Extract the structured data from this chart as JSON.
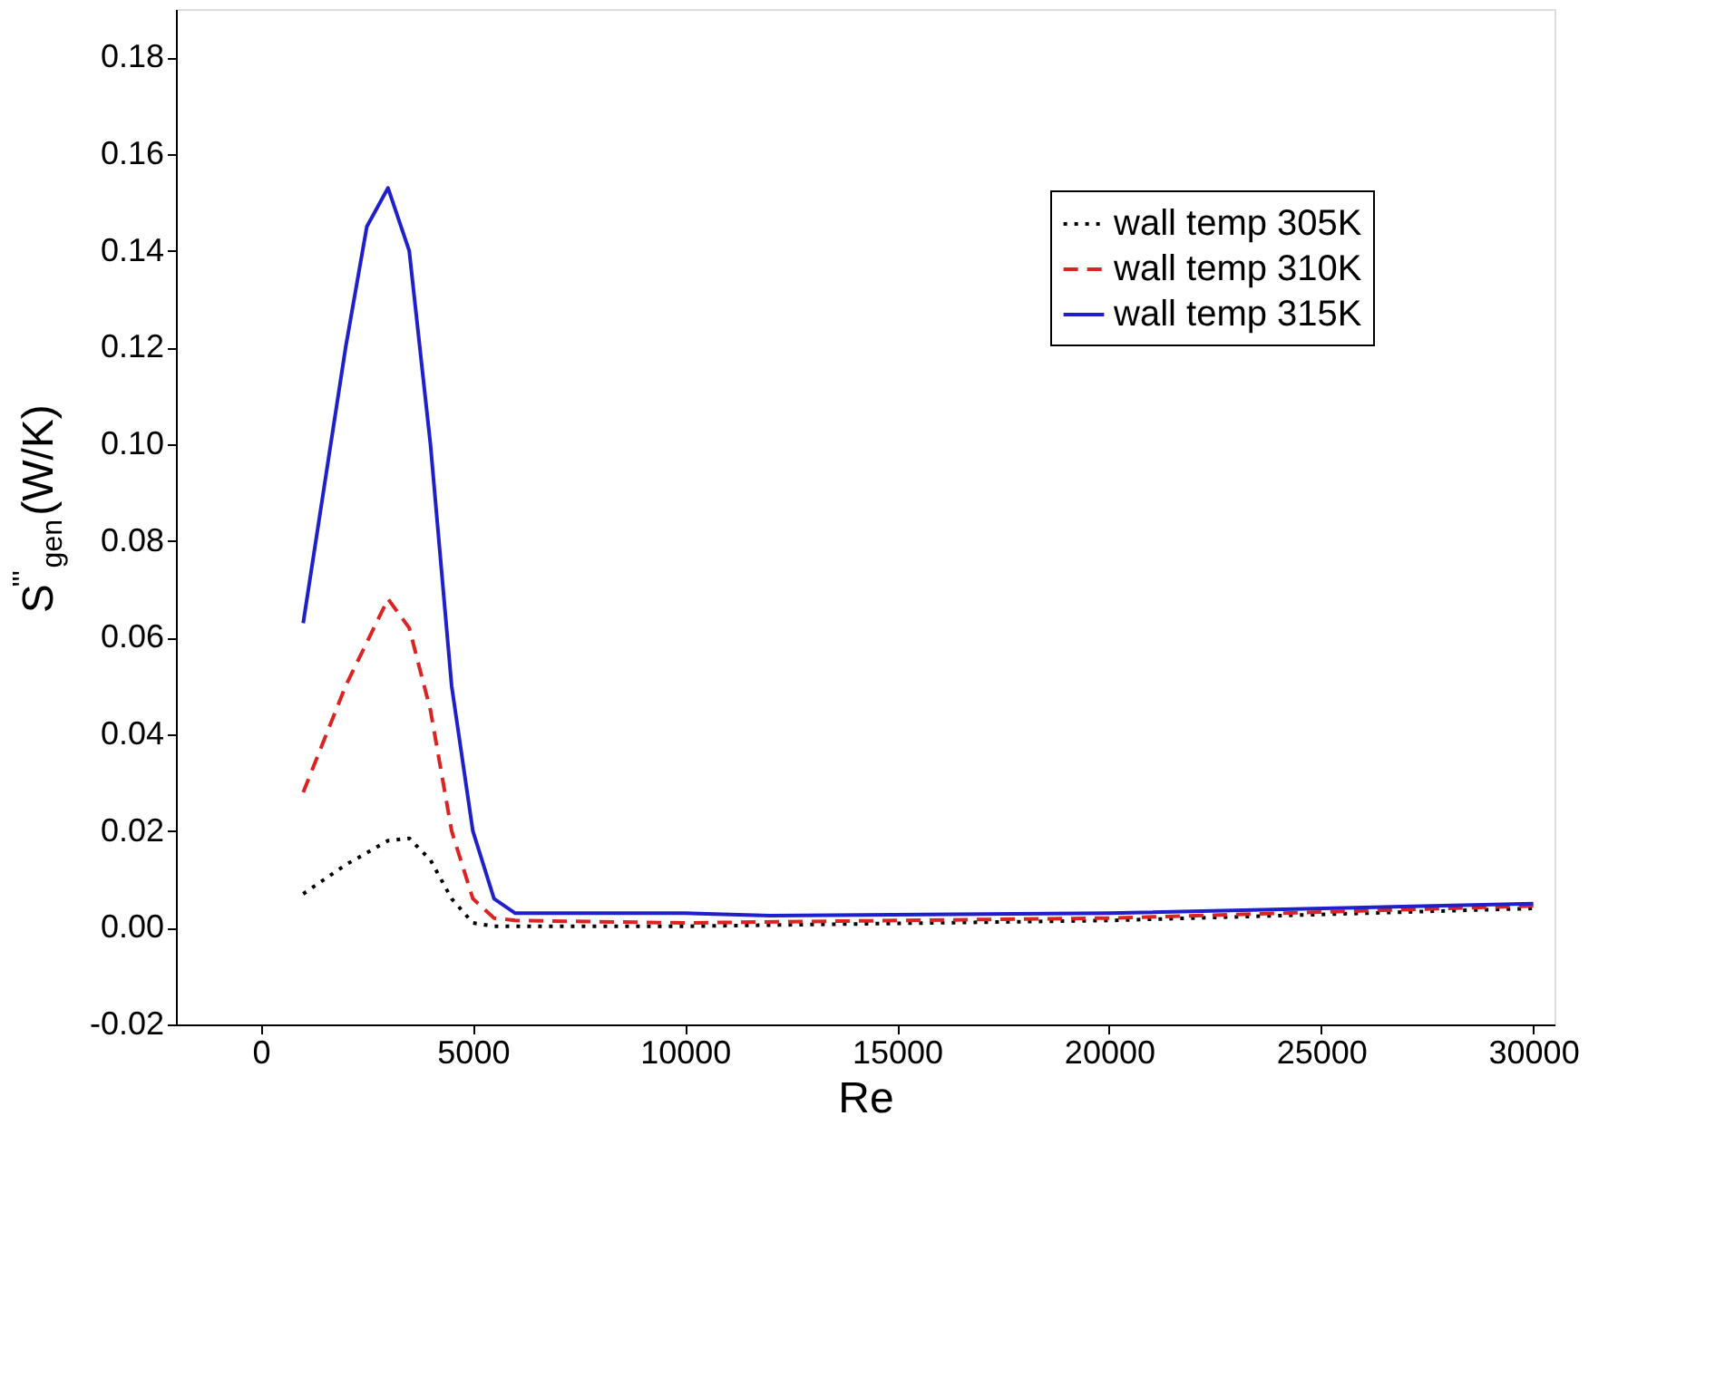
{
  "chart_data": {
    "type": "line",
    "xlabel": "Re",
    "ylabel": "S$^{'''}$$_{gen}$(W/K)",
    "xlim": [
      -2000,
      30500
    ],
    "xticks": [
      0,
      5000,
      10000,
      15000,
      20000,
      25000,
      30000
    ],
    "ylim": [
      -0.02,
      0.19
    ],
    "yticks": [
      {
        "value": -0.02,
        "label": "-0.02"
      },
      {
        "value": 0,
        "label": "0.00"
      },
      {
        "value": 0.02,
        "label": "0.02"
      },
      {
        "value": 0.04,
        "label": "0.04"
      },
      {
        "value": 0.06,
        "label": "0.06"
      },
      {
        "value": 0.08,
        "label": "0.08"
      },
      {
        "value": 0.1,
        "label": "0.10"
      },
      {
        "value": 0.12,
        "label": "0.12"
      },
      {
        "value": 0.14,
        "label": "0.14"
      },
      {
        "value": 0.16,
        "label": "0.16"
      },
      {
        "value": 0.18,
        "label": "0.18"
      }
    ],
    "grid": false,
    "legend": "top right",
    "marker": "none",
    "series": [
      {
        "name": "wall temp 305K",
        "color": "#000000",
        "line_style": "dotted",
        "x": [
          1000,
          2000,
          3000,
          3500,
          4000,
          4500,
          5000,
          5500,
          10000,
          20000,
          30000
        ],
        "values": [
          0.007,
          0.013,
          0.018,
          0.0185,
          0.014,
          0.006,
          0.001,
          0.0003,
          0.0003,
          0.0015,
          0.004
        ]
      },
      {
        "name": "wall temp 310K",
        "color": "#dd2222",
        "line_style": "dashed",
        "x": [
          1000,
          2000,
          3000,
          3500,
          4000,
          4500,
          5000,
          5500,
          6000,
          10000,
          20000,
          30000
        ],
        "values": [
          0.028,
          0.05,
          0.068,
          0.062,
          0.045,
          0.02,
          0.006,
          0.002,
          0.0015,
          0.001,
          0.002,
          0.0045
        ]
      },
      {
        "name": "wall temp 315K",
        "color": "#1f1fcc",
        "line_style": "solid",
        "x": [
          1000,
          2000,
          2500,
          3000,
          3500,
          4000,
          4500,
          5000,
          5500,
          6000,
          10000,
          12000,
          20000,
          30000
        ],
        "values": [
          0.063,
          0.12,
          0.145,
          0.153,
          0.14,
          0.1,
          0.05,
          0.02,
          0.006,
          0.003,
          0.003,
          0.0025,
          0.003,
          0.005
        ]
      }
    ]
  }
}
